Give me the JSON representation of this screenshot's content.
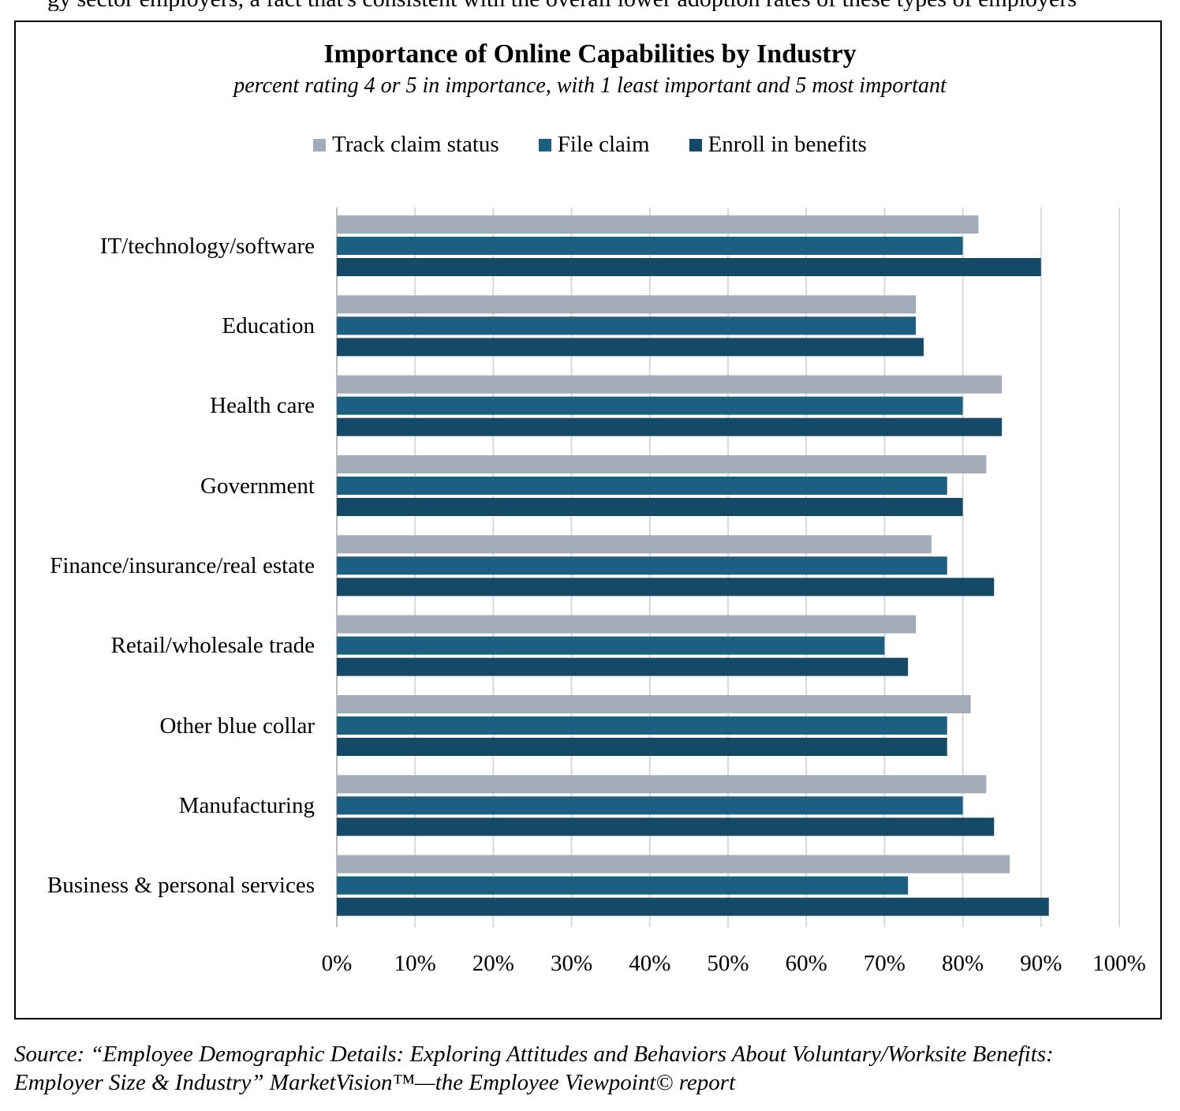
{
  "page": {
    "top_cut_text": "gy sector employers, a fact that's consistent with the overall lower adoption rates of these types of employers"
  },
  "chart_data": {
    "type": "bar",
    "orientation": "horizontal",
    "title": "Importance of Online Capabilities by Industry",
    "subtitle": "percent rating 4 or 5 in importance, with 1 least important and 5 most important",
    "categories": [
      "IT/technology/software",
      "Education",
      "Health care",
      "Government",
      "Finance/insurance/real estate",
      "Retail/wholesale trade",
      "Other blue collar",
      "Manufacturing",
      "Business & personal services"
    ],
    "series": [
      {
        "name": "Track claim status",
        "color": "#a2abb8",
        "values": [
          82,
          74,
          85,
          83,
          76,
          74,
          81,
          83,
          86
        ]
      },
      {
        "name": "File claim",
        "color": "#1c5f80",
        "values": [
          80,
          74,
          80,
          78,
          78,
          70,
          78,
          80,
          73
        ]
      },
      {
        "name": "Enroll in benefits",
        "color": "#154a66",
        "values": [
          90,
          75,
          85,
          80,
          84,
          73,
          78,
          84,
          91
        ]
      }
    ],
    "x_ticks": [
      "0%",
      "10%",
      "20%",
      "30%",
      "40%",
      "50%",
      "60%",
      "70%",
      "80%",
      "90%",
      "100%"
    ],
    "xlim": [
      0,
      100
    ],
    "grid": true,
    "legend": "top-center"
  },
  "source": {
    "line1": "Source: “Employee Demographic Details: Exploring Attitudes and Behaviors About Voluntary/Worksite Benefits:",
    "line2": "Employer Size & Industry” MarketVision™—the Employee Viewpoint© report"
  }
}
